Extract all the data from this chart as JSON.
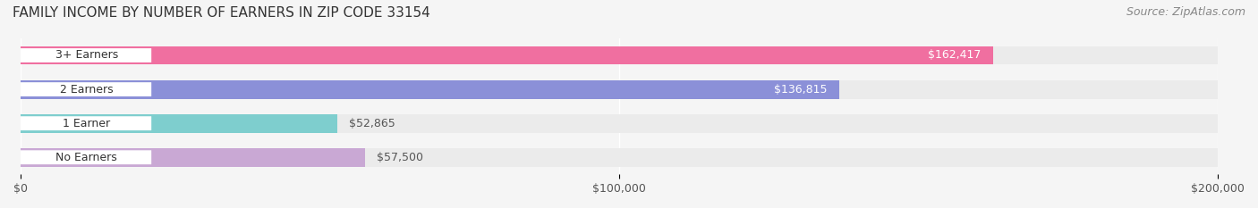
{
  "title": "FAMILY INCOME BY NUMBER OF EARNERS IN ZIP CODE 33154",
  "source": "Source: ZipAtlas.com",
  "categories": [
    "No Earners",
    "1 Earner",
    "2 Earners",
    "3+ Earners"
  ],
  "values": [
    57500,
    52865,
    136815,
    162417
  ],
  "bar_colors": [
    "#c9a8d4",
    "#7ecece",
    "#8b90d8",
    "#f06fa0"
  ],
  "bar_bg_color": "#ebebeb",
  "value_labels": [
    "$57,500",
    "$52,865",
    "$136,815",
    "$162,417"
  ],
  "value_label_colors": [
    "#555555",
    "#555555",
    "#ffffff",
    "#ffffff"
  ],
  "xlim": [
    0,
    200000
  ],
  "xticks": [
    0,
    100000,
    200000
  ],
  "xtick_labels": [
    "$0",
    "$100,000",
    "$200,000"
  ],
  "title_fontsize": 11,
  "source_fontsize": 9,
  "label_fontsize": 9,
  "tick_fontsize": 9,
  "background_color": "#f5f5f5"
}
